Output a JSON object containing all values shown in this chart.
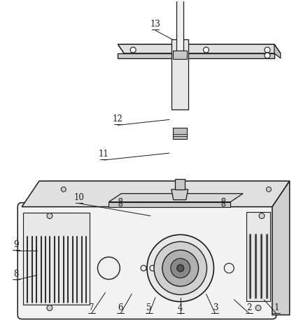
{
  "bg_color": "#ffffff",
  "line_color": "#1a1a1a",
  "figsize": [
    4.3,
    4.73
  ],
  "dpi": 100,
  "label_data": [
    [
      "1",
      396,
      448,
      378,
      428
    ],
    [
      "2",
      357,
      448,
      335,
      428
    ],
    [
      "3",
      308,
      448,
      295,
      420
    ],
    [
      "4",
      258,
      448,
      258,
      425
    ],
    [
      "5",
      213,
      448,
      222,
      425
    ],
    [
      "6",
      172,
      448,
      188,
      420
    ],
    [
      "7",
      130,
      448,
      150,
      418
    ],
    [
      "8",
      22,
      400,
      52,
      393
    ],
    [
      "9",
      22,
      358,
      52,
      358
    ],
    [
      "10",
      112,
      290,
      215,
      308
    ],
    [
      "11",
      148,
      228,
      242,
      218
    ],
    [
      "12",
      168,
      178,
      242,
      170
    ],
    [
      "13",
      222,
      42,
      265,
      65
    ]
  ]
}
